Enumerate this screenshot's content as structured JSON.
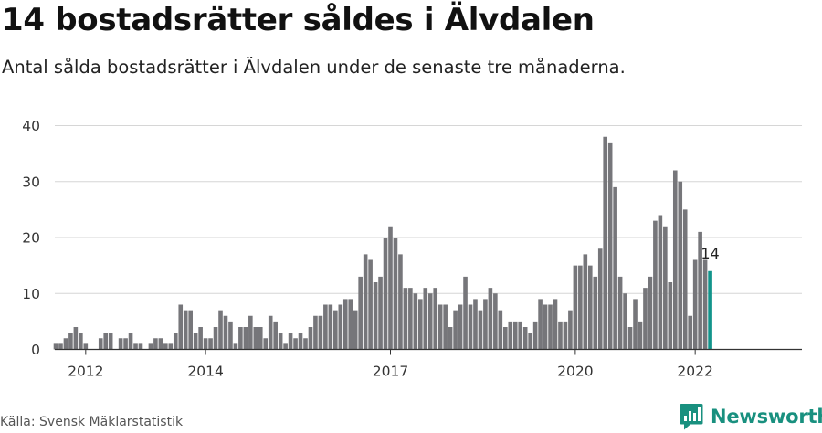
{
  "chart_data": {
    "type": "bar",
    "title": "14 bostadsrätter såldes i Älvdalen",
    "subtitle": "Antal sålda bostadsrätter i Älvdalen under de senaste tre månaderna.",
    "xlabel": "",
    "ylabel": "",
    "ylim": [
      0,
      40
    ],
    "yticks": [
      0,
      10,
      20,
      30,
      40
    ],
    "grid": true,
    "x_ticks": [
      {
        "label": "2012",
        "index": 6
      },
      {
        "label": "2014",
        "index": 30
      },
      {
        "label": "2017",
        "index": 67
      },
      {
        "label": "2020",
        "index": 104
      },
      {
        "label": "2022",
        "index": 128
      }
    ],
    "highlight_color": "#12948b",
    "bar_color": "#76767a",
    "last_label": "14",
    "values": [
      1,
      1,
      2,
      3,
      4,
      3,
      1,
      0,
      0,
      2,
      3,
      3,
      0,
      2,
      2,
      3,
      1,
      1,
      0,
      1,
      2,
      2,
      1,
      1,
      3,
      8,
      7,
      7,
      3,
      4,
      2,
      2,
      4,
      7,
      6,
      5,
      1,
      4,
      4,
      6,
      4,
      4,
      2,
      6,
      5,
      3,
      1,
      3,
      2,
      3,
      2,
      4,
      6,
      6,
      8,
      8,
      7,
      8,
      9,
      9,
      7,
      13,
      17,
      16,
      12,
      13,
      20,
      22,
      20,
      17,
      11,
      11,
      10,
      9,
      11,
      10,
      11,
      8,
      8,
      4,
      7,
      8,
      13,
      8,
      9,
      7,
      9,
      11,
      10,
      7,
      4,
      5,
      5,
      5,
      4,
      3,
      5,
      9,
      8,
      8,
      9,
      5,
      5,
      7,
      15,
      15,
      17,
      15,
      13,
      18,
      38,
      37,
      29,
      13,
      10,
      4,
      9,
      5,
      11,
      13,
      23,
      24,
      22,
      12,
      32,
      30,
      25,
      6,
      16,
      21,
      16,
      14
    ]
  },
  "source": "Källa: Svensk Mäklarstatistik",
  "brand": "Newsworthy"
}
